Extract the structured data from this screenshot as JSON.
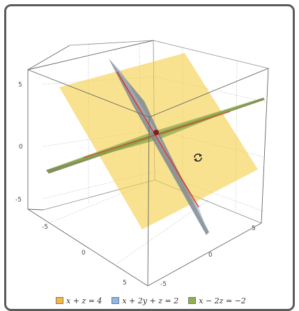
{
  "plot": {
    "axes": {
      "x": {
        "ticks": [
          "-5",
          "0",
          "5"
        ]
      },
      "y": {
        "ticks": [
          "-5",
          "0",
          "5"
        ]
      },
      "z": {
        "ticks": [
          "5",
          "0",
          "-5"
        ]
      }
    },
    "box": true,
    "grid": "dotted"
  },
  "planes": [
    {
      "label": "x + z = 4",
      "color": "#f5d04a"
    },
    {
      "label": "x + 2y + z = 2",
      "color": "#8fb8e8"
    },
    {
      "label": "x − 2z = −2",
      "color": "#8fb04a"
    }
  ],
  "intersection_line_color": "#d9342b",
  "cursor": "rotate-cursor-icon"
}
